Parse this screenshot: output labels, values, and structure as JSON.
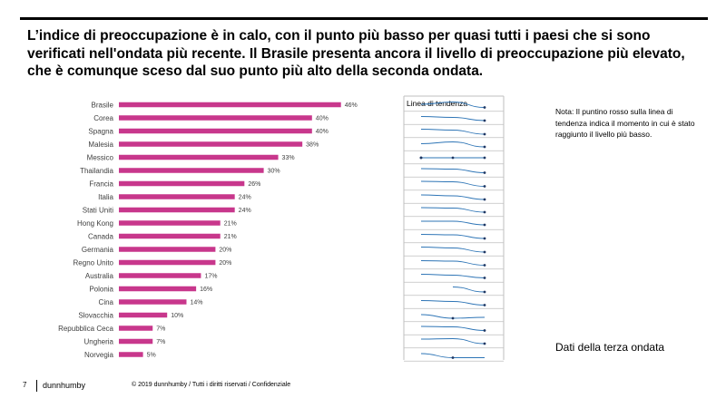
{
  "headline": "L’indice di preoccupazione è in calo, con il punto più basso per quasi tutti i paesi che si sono verificati nell'ondata più recente. Il Brasile presenta ancora il livello di preoccupazione più elevato, che è comunque sceso dal suo punto più alto della seconda ondata.",
  "note": "Nota: Il puntino rosso sulla linea di tendenza indica il momento in cui è stato raggiunto il livello più basso.",
  "wave_label": "Dati della terza ondata",
  "footer": {
    "page_number": "7",
    "brand": "dunnhumby",
    "copyright": "© 2019 dunnhumby / Tutti i diritti riservati / Confidenziale"
  },
  "colors": {
    "bar": "#c8378c",
    "trend": "#2e75b6",
    "divider": "#bfbfbf"
  },
  "chart_data": {
    "type": "bar",
    "orientation": "horizontal",
    "categories": [
      "Brasile",
      "Corea",
      "Spagna",
      "Malesia",
      "Messico",
      "Thailandia",
      "Francia",
      "Italia",
      "Stati Uniti",
      "Hong Kong",
      "Canada",
      "Germania",
      "Regno Unito",
      "Australia",
      "Polonia",
      "Cina",
      "Slovacchia",
      "Repubblica Ceca",
      "Ungheria",
      "Norvegia"
    ],
    "values": [
      46,
      40,
      40,
      38,
      33,
      30,
      26,
      24,
      24,
      21,
      21,
      20,
      20,
      17,
      16,
      14,
      10,
      7,
      7,
      5
    ],
    "value_labels": [
      "46%",
      "40%",
      "40%",
      "38%",
      "33%",
      "30%",
      "26%",
      "24%",
      "24%",
      "21%",
      "21%",
      "20%",
      "20%",
      "17%",
      "16%",
      "14%",
      "10%",
      "7%",
      "7%",
      "5%"
    ],
    "xlim": [
      0,
      50
    ],
    "trend_title": "Linea di tendenza",
    "trend_lines": [
      [
        0.55,
        0.8,
        0.2
      ],
      [
        0.65,
        0.55,
        0.2
      ],
      [
        0.7,
        0.6,
        0.15
      ],
      [
        0.55,
        0.75,
        0.2
      ],
      [
        0.45,
        0.45,
        0.45
      ],
      [
        0.7,
        0.65,
        0.25
      ],
      [
        0.75,
        0.7,
        0.2
      ],
      [
        0.7,
        0.6,
        0.2
      ],
      [
        0.75,
        0.7,
        0.25
      ],
      [
        0.7,
        0.7,
        0.3
      ],
      [
        0.7,
        0.65,
        0.25
      ],
      [
        0.75,
        0.65,
        0.2
      ],
      [
        0.7,
        0.65,
        0.2
      ],
      [
        0.65,
        0.55,
        0.25
      ],
      [
        null,
        0.7,
        0.15
      ],
      [
        0.65,
        0.55,
        0.15
      ],
      [
        0.55,
        0.15,
        0.25
      ],
      [
        0.7,
        0.65,
        0.25
      ],
      [
        0.75,
        0.8,
        0.25
      ],
      [
        0.6,
        0.15,
        0.15
      ]
    ]
  }
}
